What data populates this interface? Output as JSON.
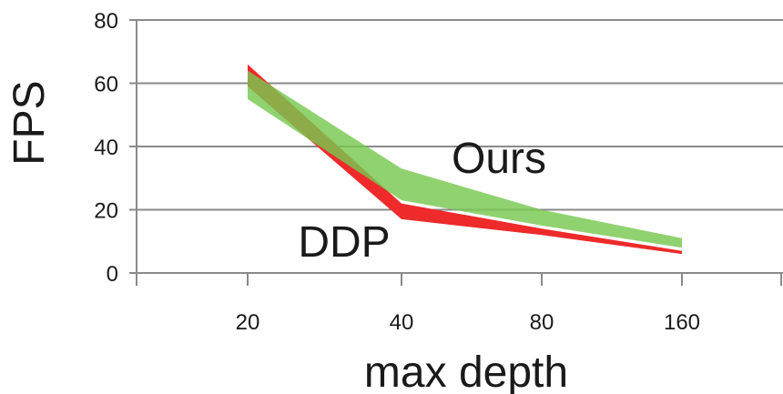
{
  "chart_data": {
    "type": "area",
    "title": "",
    "xlabel": "max depth",
    "ylabel": "FPS",
    "categories": [
      "20",
      "40",
      "80",
      "160"
    ],
    "ylim": [
      0,
      80
    ],
    "yticks": [
      "0",
      "20",
      "40",
      "60",
      "80"
    ],
    "grid": true,
    "series": [
      {
        "name": "DDP",
        "color": "#ee2a2a",
        "low": [
          59,
          17,
          12,
          6
        ],
        "high": [
          66,
          22,
          14,
          7
        ]
      },
      {
        "name": "Ours",
        "color": "#78c850",
        "low": [
          55,
          23,
          15,
          8
        ],
        "high": [
          64,
          33,
          20,
          11
        ]
      }
    ]
  }
}
